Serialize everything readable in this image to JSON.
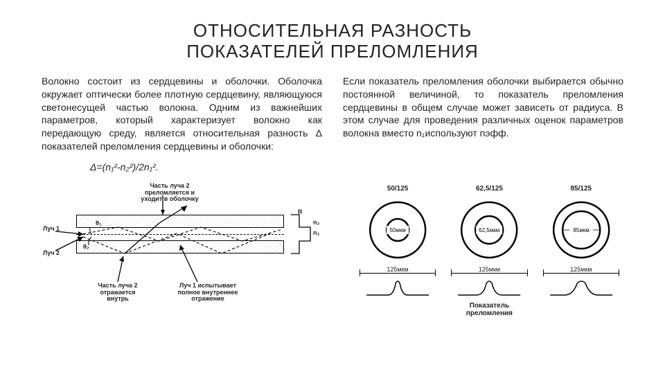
{
  "title_line1": "ОТНОСИТЕЛЬНАЯ РАЗНОСТЬ",
  "title_line2": "ПОКАЗАТЕЛЕЙ ПРЕЛОМЛЕНИЯ",
  "left_para": "Волокно состоит из сердцевины и оболочки. Оболочка окружает оптически более плотную сердцевину, являющуюся светонесущей частью волокна. Одним из важнейших параметров, который характеризует волокно как передающую среду, является относительная разность Δ показателей преломления сердцевины и оболочки:",
  "formula": "Δ=(n₁²-n₂²)/2n₁².",
  "right_para": "Если показатель преломления оболочки выбирается обычно постоянной величиной, то показатель преломления сердцевины в общем случае может зависеть от радиуса. В этом случае для проведения различных оценок параметров волокна вместо n₁используют nэфф.",
  "fiber_diagram": {
    "ann_top": "Часть луча 2\nпреломляется и\nуходит в оболочку",
    "ann_ray1": "Луч 1",
    "ann_ray2": "Луч 2",
    "ann_theta1": "θ₁",
    "ann_theta2": "θ₂",
    "ann_R": "R",
    "ann_n1": "n₁",
    "ann_n2": "n₂",
    "ann_bot_left": "Часть луча 2\nотражается\nвнутрь",
    "ann_bot_right": "Луч 1 испытывает\nполное внутреннее\nотражение",
    "colors": {
      "line": "#000000",
      "hatch": "#e8e8e8",
      "bg": "#ffffff"
    }
  },
  "circles": [
    {
      "label": "50/125",
      "core": "50мкм",
      "clad": "125мкм",
      "core_r": 16,
      "clad_r": 40
    },
    {
      "label": "62,5/125",
      "core": "62,5мкм",
      "clad": "125мкм",
      "core_r": 20,
      "clad_r": 40
    },
    {
      "label": "85/125",
      "core": "85мкм",
      "clad": "125мкм",
      "core_r": 27,
      "clad_r": 40
    }
  ],
  "profile_legend": "Показатель\nпреломления",
  "styling": {
    "title_fontsize": 26,
    "body_fontsize": 14,
    "ann_fontsize": 9,
    "text_color": "#222222",
    "bg_color": "#ffffff",
    "circle_stroke": "#000000",
    "circle_stroke_width": 2
  }
}
